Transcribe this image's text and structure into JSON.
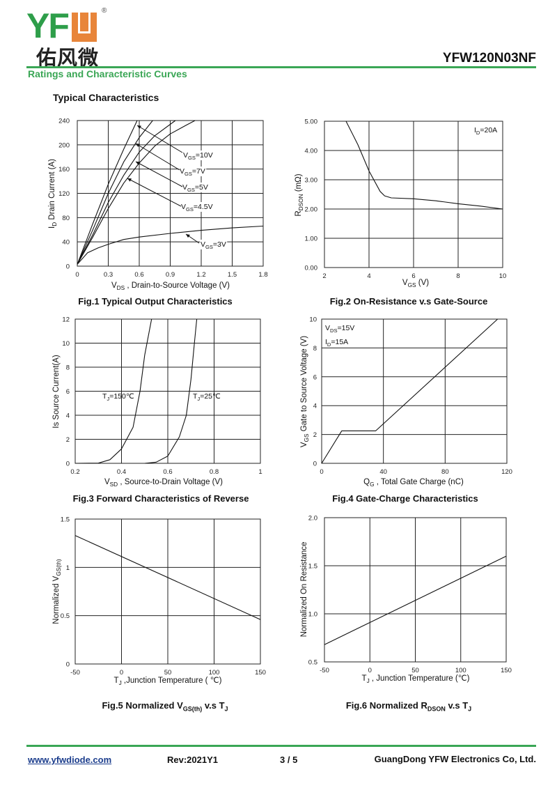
{
  "header": {
    "logo_letters": "YFW",
    "logo_cn": "佑风微",
    "logo_reg": "®",
    "part_number": "YFW120N03NF",
    "section_title": "Ratings and Characteristic Curves",
    "subheading": "Typical Characteristics"
  },
  "colors": {
    "brand_green": "#3aa655",
    "brand_orange": "#e8853a",
    "link": "#1a3c8c"
  },
  "captions": [
    {
      "pre": "Fig.1 Typical Output Characteristics",
      "sub": "",
      "post": ""
    },
    {
      "pre": "Fig.2 On-Resistance v.s Gate-Source",
      "sub": "",
      "post": ""
    },
    {
      "pre": "Fig.3 Forward Characteristics of Reverse",
      "sub": "",
      "post": ""
    },
    {
      "pre": "Fig.4 Gate-Charge Characteristics",
      "sub": "",
      "post": ""
    },
    {
      "pre": "Fig.5 Normalized V",
      "sub": "GS(th)",
      "post": " v.s T",
      "sub2": "J"
    },
    {
      "pre": "Fig.6 Normalized R",
      "sub": "DSON",
      "post": " v.s T",
      "sub2": "J"
    }
  ],
  "chart_data": [
    {
      "type": "line",
      "title": "Fig.1 Typical Output Characteristics",
      "xlabel": [
        {
          "t": "V"
        },
        {
          "t": "DS",
          "sub": true
        },
        {
          "t": " , Drain-to-Source Voltage (V)"
        }
      ],
      "ylabel": [
        {
          "t": "I"
        },
        {
          "t": "D",
          "sub": true
        },
        {
          "t": " Drain Current (A)"
        }
      ],
      "xlim": [
        0,
        1.8
      ],
      "ylim": [
        0,
        240
      ],
      "xticks": [
        "0",
        "0.3",
        "0.6",
        "0.9",
        "1.2",
        "1.5",
        "1.8"
      ],
      "yticks": [
        "0",
        "40",
        "80",
        "120",
        "160",
        "200",
        "240"
      ],
      "grid": true,
      "series": [
        {
          "name": "VGS=10V",
          "x": [
            0,
            0.15,
            0.3,
            0.45,
            0.58
          ],
          "y": [
            3,
            70,
            135,
            193,
            240
          ]
        },
        {
          "name": "VGS=7V",
          "x": [
            0,
            0.15,
            0.3,
            0.45,
            0.6,
            0.73
          ],
          "y": [
            3,
            60,
            120,
            172,
            212,
            240
          ]
        },
        {
          "name": "VGS=5V",
          "x": [
            0,
            0.15,
            0.3,
            0.45,
            0.6,
            0.75,
            0.95
          ],
          "y": [
            3,
            52,
            105,
            150,
            188,
            215,
            240
          ]
        },
        {
          "name": "VGS=4.5V",
          "x": [
            0,
            0.15,
            0.3,
            0.45,
            0.6,
            0.75,
            0.9,
            1.05,
            1.14
          ],
          "y": [
            3,
            48,
            95,
            137,
            170,
            198,
            218,
            232,
            240
          ]
        },
        {
          "name": "VGS=3V",
          "x": [
            0,
            0.1,
            0.2,
            0.3,
            0.45,
            0.6,
            0.9,
            1.2,
            1.5,
            1.8
          ],
          "y": [
            3,
            22,
            30,
            36,
            44,
            48,
            54,
            59,
            63,
            66
          ]
        }
      ],
      "annotations": [
        [
          {
            "t": "V"
          },
          {
            "t": "GS",
            "sub": true
          },
          {
            "t": "=10V"
          }
        ],
        [
          {
            "t": "V"
          },
          {
            "t": "GS",
            "sub": true
          },
          {
            "t": "=7V"
          }
        ],
        [
          {
            "t": "V"
          },
          {
            "t": "GS",
            "sub": true
          },
          {
            "t": "=5V"
          }
        ],
        [
          {
            "t": "V"
          },
          {
            "t": "GS",
            "sub": true
          },
          {
            "t": "=4.5V"
          }
        ],
        [
          {
            "t": "V"
          },
          {
            "t": "GS",
            "sub": true
          },
          {
            "t": "=3V"
          }
        ]
      ]
    },
    {
      "type": "line",
      "title": "Fig.2 On-Resistance v.s Gate-Source",
      "xlabel": [
        {
          "t": "V"
        },
        {
          "t": "GS",
          "sub": true
        },
        {
          "t": " (V)"
        }
      ],
      "ylabel": [
        {
          "t": "R"
        },
        {
          "t": "DSON",
          "sub": true
        },
        {
          "t": " (mΩ)"
        }
      ],
      "xlim": [
        2,
        10
      ],
      "ylim": [
        0,
        5
      ],
      "xticks": [
        "2",
        "4",
        "6",
        "8",
        "10"
      ],
      "yticks": [
        "0.00",
        "1.00",
        "2.00",
        "3.00",
        "4.00",
        "5.00"
      ],
      "grid": true,
      "series": [
        {
          "name": "ID=20A",
          "x": [
            2.97,
            3.5,
            4,
            4.5,
            4.7,
            5,
            6,
            7,
            8,
            9,
            10
          ],
          "y": [
            5,
            4.2,
            3.3,
            2.6,
            2.45,
            2.38,
            2.35,
            2.28,
            2.18,
            2.1,
            2.0
          ]
        }
      ],
      "annotations": [
        [
          {
            "t": "I"
          },
          {
            "t": "D",
            "sub": true
          },
          {
            "t": "=20A"
          }
        ]
      ]
    },
    {
      "type": "line",
      "title": "Fig.3 Forward Characteristics of Reverse",
      "xlabel": [
        {
          "t": "V"
        },
        {
          "t": "SD",
          "sub": true
        },
        {
          "t": " , Source-to-Drain Voltage (V)"
        }
      ],
      "ylabel": [
        {
          "t": "Is Source Current(A)"
        }
      ],
      "xlim": [
        0.2,
        1
      ],
      "ylim": [
        0,
        12
      ],
      "xticks": [
        "0.2",
        "0.4",
        "0.6",
        "0.8",
        "1"
      ],
      "yticks": [
        "0",
        "2",
        "4",
        "6",
        "8",
        "10",
        "12"
      ],
      "grid": true,
      "series": [
        {
          "name": "TJ=150℃",
          "x": [
            0.2,
            0.3,
            0.35,
            0.4,
            0.45,
            0.48,
            0.5,
            0.53
          ],
          "y": [
            0,
            0.02,
            0.3,
            1.2,
            3,
            6,
            9,
            12
          ]
        },
        {
          "name": "TJ=25℃",
          "x": [
            0.5,
            0.55,
            0.6,
            0.65,
            0.68,
            0.7,
            0.715,
            0.725
          ],
          "y": [
            0,
            0.1,
            0.6,
            2.2,
            4,
            7,
            10,
            12
          ]
        }
      ],
      "annotations": [
        [
          {
            "t": "T"
          },
          {
            "t": "J",
            "sub": true
          },
          {
            "t": "=150℃"
          }
        ],
        [
          {
            "t": "T"
          },
          {
            "t": "J",
            "sub": true
          },
          {
            "t": "=25℃"
          }
        ]
      ]
    },
    {
      "type": "line",
      "title": "Fig.4 Gate-Charge Characteristics",
      "xlabel": [
        {
          "t": "Q"
        },
        {
          "t": "G",
          "sub": true
        },
        {
          "t": " , Total Gate Charge (nC)"
        }
      ],
      "ylabel": [
        {
          "t": "V"
        },
        {
          "t": "GS",
          "sub": true
        },
        {
          "t": "   Gate to Source Voltage (V)"
        }
      ],
      "xlim": [
        0,
        120
      ],
      "ylim": [
        0,
        10
      ],
      "xticks": [
        "0",
        "40",
        "80",
        "120"
      ],
      "yticks": [
        "0",
        "2",
        "4",
        "6",
        "8",
        "10"
      ],
      "grid": true,
      "series": [
        {
          "name": "VDS=15V ID=15A",
          "x": [
            0,
            13,
            35,
            114
          ],
          "y": [
            0,
            2.25,
            2.25,
            10
          ]
        }
      ],
      "annotations": [
        [
          {
            "t": "V"
          },
          {
            "t": "DS",
            "sub": true
          },
          {
            "t": "=15V"
          }
        ],
        [
          {
            "t": "I"
          },
          {
            "t": "D",
            "sub": true
          },
          {
            "t": "=15A"
          }
        ]
      ]
    },
    {
      "type": "line",
      "title": "Fig.5 Normalized VGS(th) v.s TJ",
      "xlabel": [
        {
          "t": "T"
        },
        {
          "t": "J",
          "sub": true
        },
        {
          "t": " ,Junction Temperature ( ℃)"
        }
      ],
      "ylabel": [
        {
          "t": "Normalized V"
        },
        {
          "t": "GS(th)",
          "sub": true
        }
      ],
      "xlim": [
        -50,
        150
      ],
      "ylim": [
        0,
        1.5
      ],
      "xticks": [
        "-50",
        "0",
        "50",
        "100",
        "150"
      ],
      "yticks": [
        "0",
        "0.5",
        "1",
        "1.5"
      ],
      "grid": true,
      "series": [
        {
          "name": "VGS(th)",
          "x": [
            -50,
            150
          ],
          "y": [
            1.33,
            0.46
          ]
        }
      ],
      "annotations": []
    },
    {
      "type": "line",
      "title": "Fig.6 Normalized RDSON v.s TJ",
      "xlabel": [
        {
          "t": "T"
        },
        {
          "t": "J",
          "sub": true
        },
        {
          "t": " , Junction Temperature (℃)"
        }
      ],
      "ylabel": [
        {
          "t": "Normalized On Resistance"
        }
      ],
      "xlim": [
        -50,
        150
      ],
      "ylim": [
        0.5,
        2.0
      ],
      "xticks": [
        "-50",
        "0",
        "50",
        "100",
        "150"
      ],
      "yticks": [
        "0.5",
        "1.0",
        "1.5",
        "2.0"
      ],
      "grid": true,
      "series": [
        {
          "name": "RDSON",
          "x": [
            -50,
            150
          ],
          "y": [
            0.68,
            1.6
          ]
        }
      ],
      "annotations": []
    }
  ],
  "footer": {
    "website": "www.yfwdiode.com",
    "revision": "Rev:2021Y1",
    "page": "3 / 5",
    "company": "GuangDong YFW Electronics Co, Ltd."
  }
}
